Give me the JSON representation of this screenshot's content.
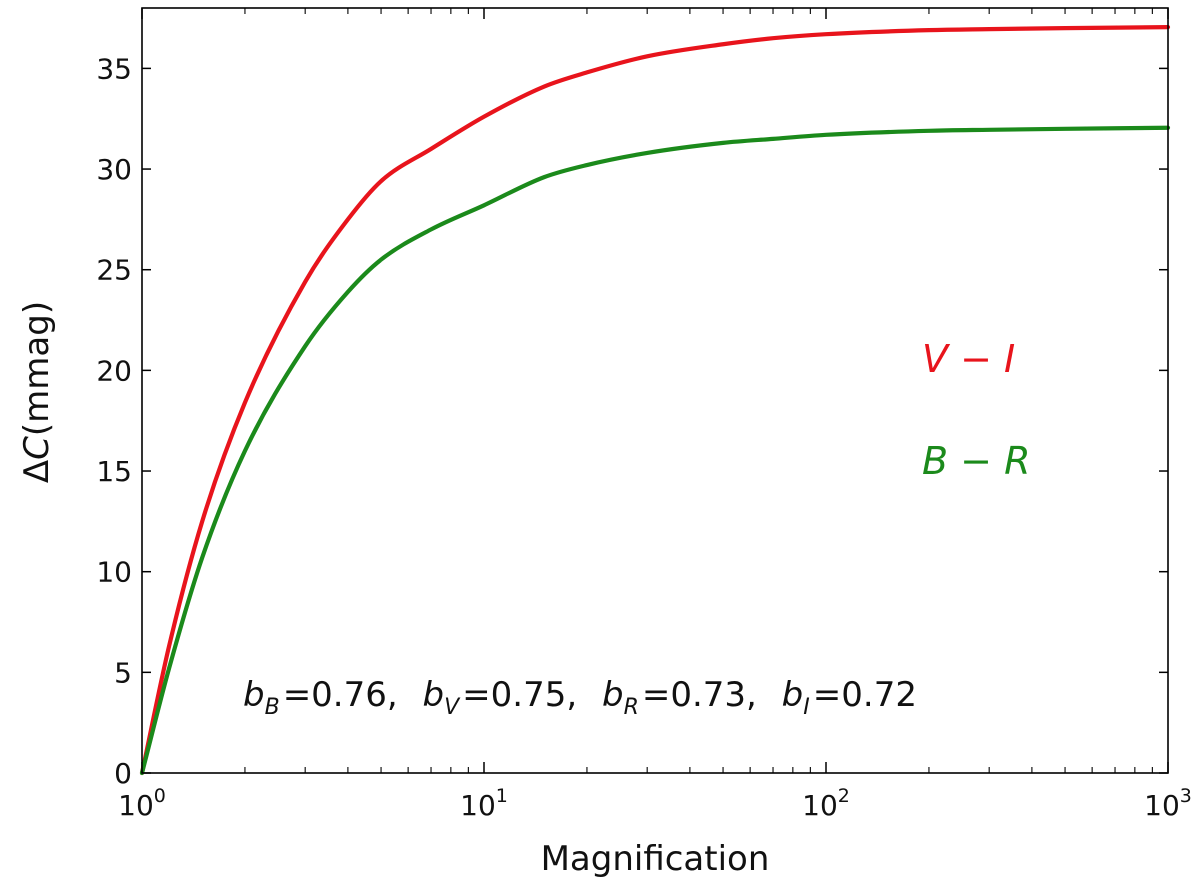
{
  "chart_data": {
    "type": "line",
    "xscale": "log",
    "xlabel": "Magnification",
    "ylabel_delta": "Δ",
    "ylabel_var": "C",
    "ylabel_unit": "(mmag)",
    "xlim": [
      1,
      1000
    ],
    "ylim": [
      0,
      38
    ],
    "x_ticks": [
      {
        "value": 1,
        "base": "10",
        "exp": "0"
      },
      {
        "value": 10,
        "base": "10",
        "exp": "1"
      },
      {
        "value": 100,
        "base": "10",
        "exp": "2"
      },
      {
        "value": 1000,
        "base": "10",
        "exp": "3"
      }
    ],
    "y_ticks": [
      "0",
      "5",
      "10",
      "15",
      "20",
      "25",
      "30",
      "35"
    ],
    "grid": false,
    "series": [
      {
        "name_a": "V",
        "name_b": "I",
        "color": "#e8141c",
        "x": [
          1.0,
          1.2,
          1.5,
          2.0,
          3.0,
          4.0,
          5.0,
          7.0,
          10,
          15,
          20,
          30,
          50,
          70,
          100,
          200,
          300,
          500,
          1000
        ],
        "y": [
          0.0,
          6.3,
          12.5,
          18.4,
          24.4,
          27.5,
          29.4,
          31.0,
          32.6,
          34.1,
          34.8,
          35.6,
          36.2,
          36.5,
          36.7,
          36.9,
          36.95,
          37.0,
          37.05
        ]
      },
      {
        "name_a": "B",
        "name_b": "R",
        "color": "#1b8a1b",
        "x": [
          1.0,
          1.2,
          1.5,
          2.0,
          3.0,
          4.0,
          5.0,
          7.0,
          10,
          15,
          20,
          30,
          50,
          70,
          100,
          200,
          300,
          500,
          1000
        ],
        "y": [
          0.0,
          5.2,
          10.7,
          16.0,
          21.2,
          23.9,
          25.5,
          27.0,
          28.2,
          29.6,
          30.2,
          30.8,
          31.3,
          31.5,
          31.7,
          31.9,
          31.95,
          32.0,
          32.05
        ]
      }
    ],
    "annotation": [
      {
        "var": "b",
        "sub": "B",
        "value": "=0.76,"
      },
      {
        "var": "b",
        "sub": "V",
        "value": "=0.75,"
      },
      {
        "var": "b",
        "sub": "R",
        "value": "=0.73,"
      },
      {
        "var": "b",
        "sub": "I",
        "value": "=0.72"
      }
    ]
  }
}
